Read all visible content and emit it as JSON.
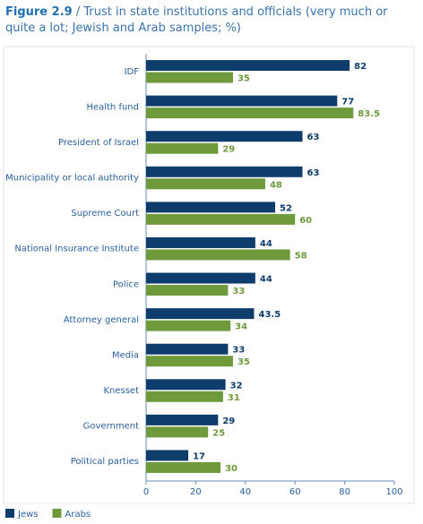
{
  "chart_data": {
    "type": "hbar",
    "figure_label": "Figure 2.9",
    "title": "/ Trust in state institutions and officials (very much or quite a lot; Jewish and Arab samples; %)",
    "categories": [
      "IDF",
      "Health fund",
      "President of Israel",
      "Municipality or local authority",
      "Supreme Court",
      "National Insurance Institute",
      "Police",
      "Attorney general",
      "Media",
      "Knesset",
      "Government",
      "Political parties"
    ],
    "series": [
      {
        "name": "Jews",
        "color": "#0e3d6b",
        "values": [
          82,
          77,
          63,
          63,
          52,
          44,
          44,
          43.5,
          33,
          32,
          29,
          17
        ]
      },
      {
        "name": "Arabs",
        "color": "#6f9a3b",
        "values": [
          35,
          83.5,
          29,
          48,
          60,
          58,
          33,
          34,
          35,
          31,
          25,
          30
        ]
      }
    ],
    "xlim": [
      0,
      100
    ],
    "xticks": [
      0,
      20,
      40,
      60,
      80,
      100
    ],
    "grid": false,
    "legend": "bottom-left"
  }
}
